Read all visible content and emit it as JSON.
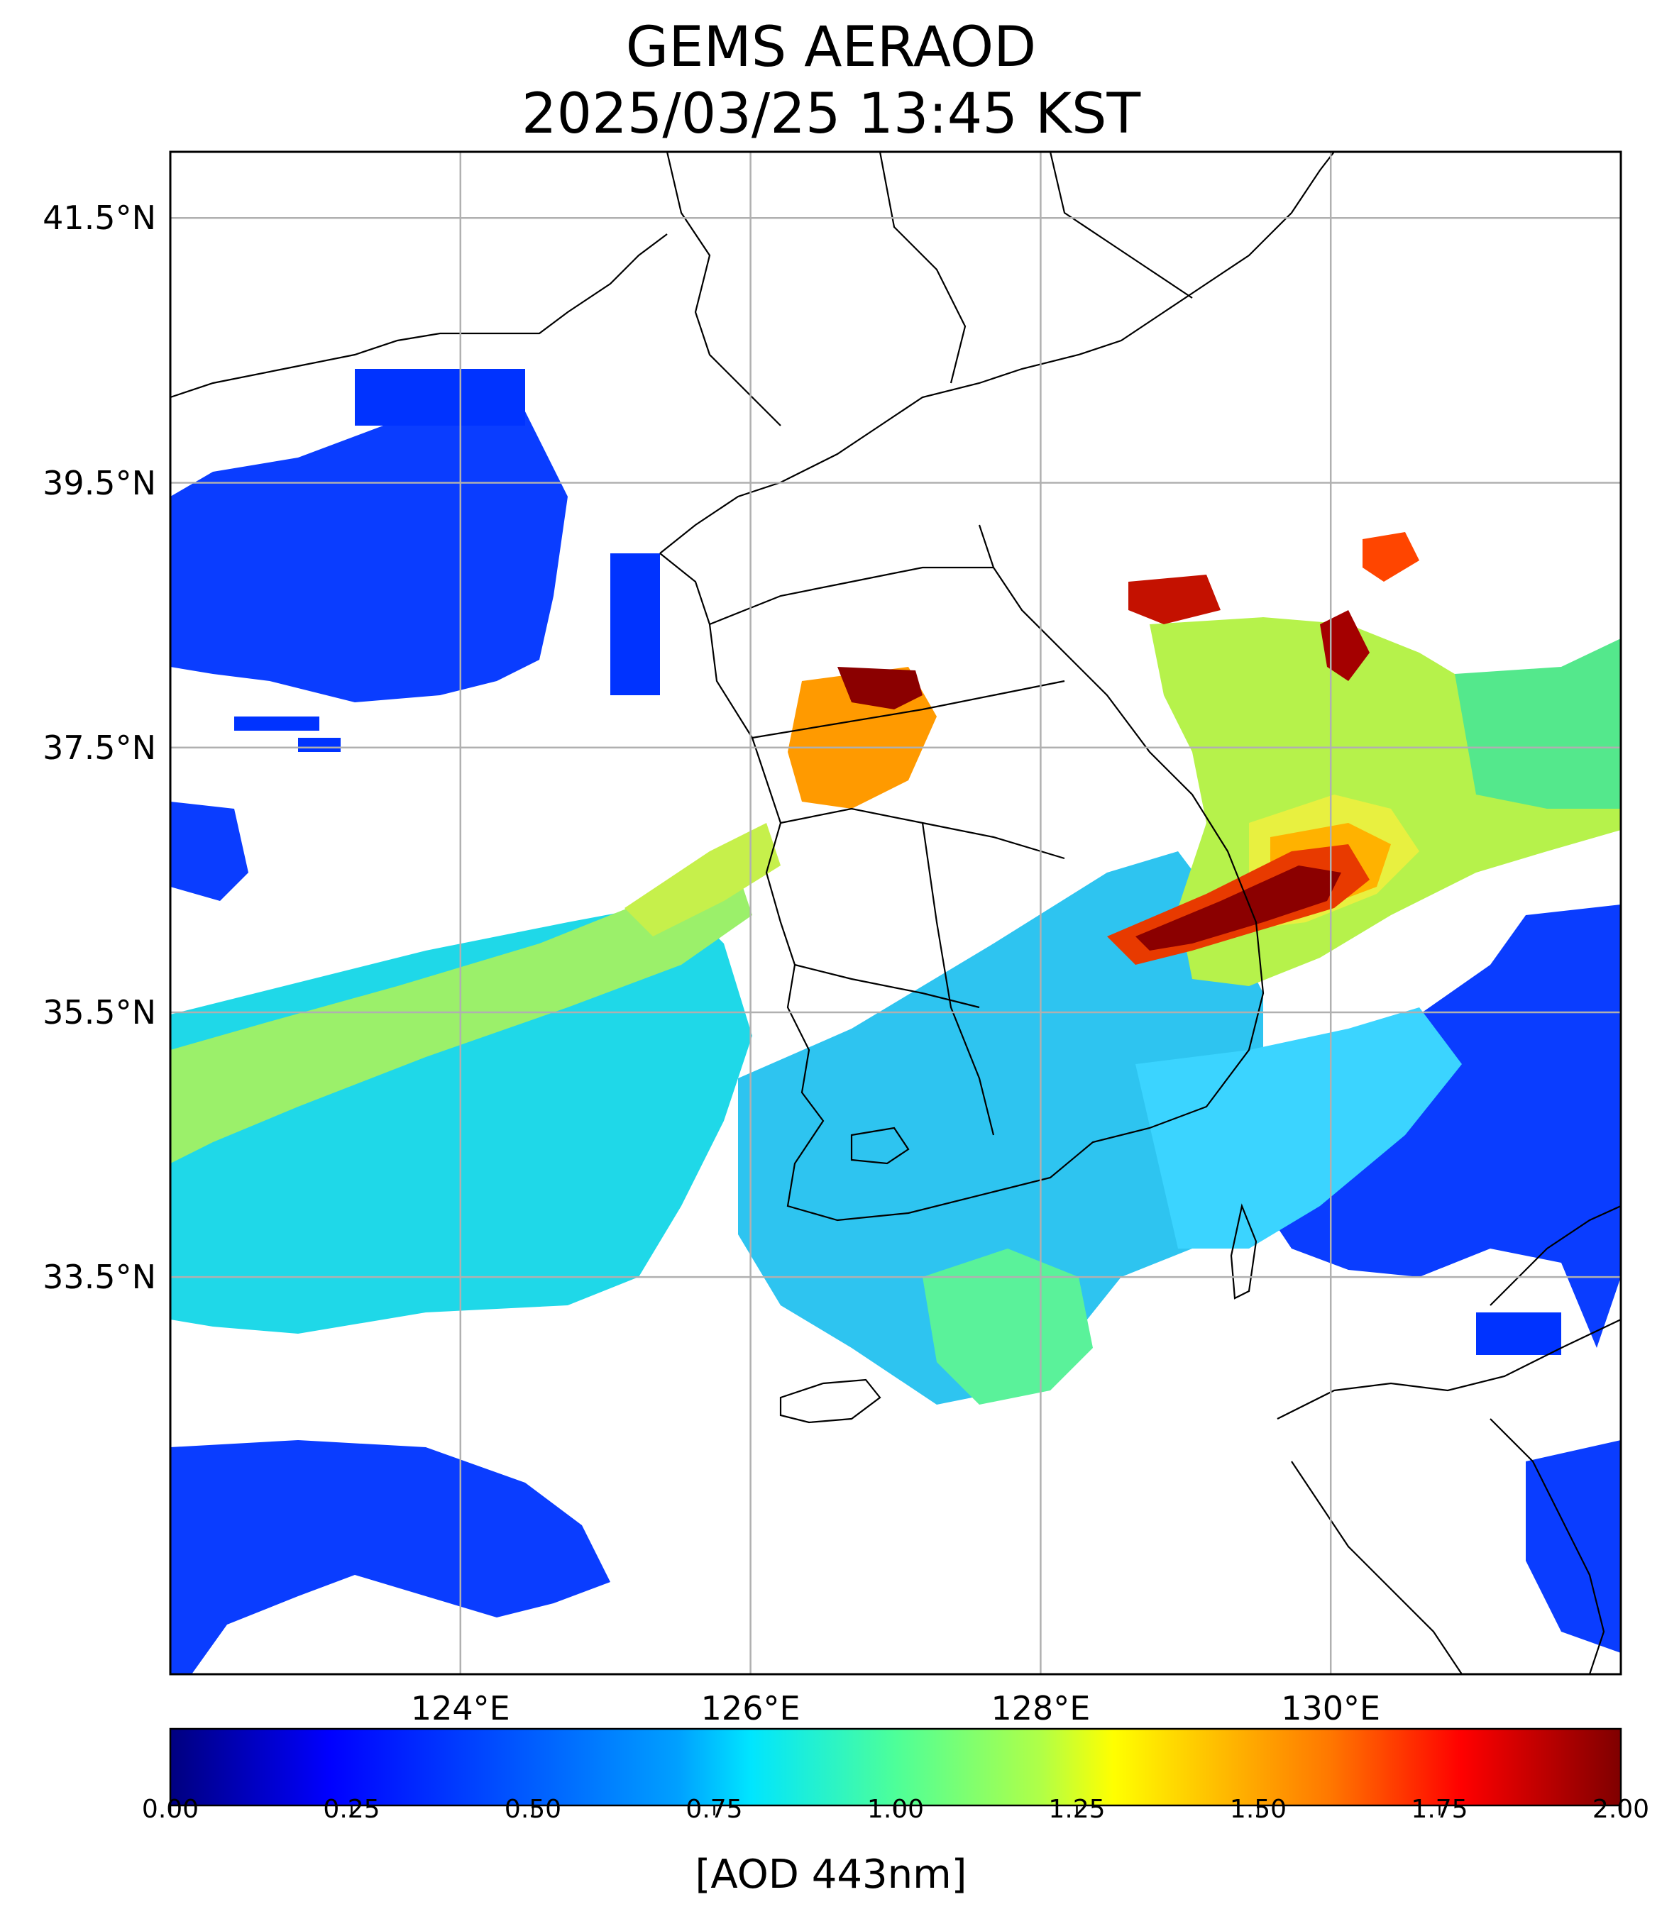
{
  "title_line1": "GEMS AERAOD",
  "title_line2": "2025/03/25 13:45 KST",
  "map": {
    "lon_range": [
      122.0,
      132.0
    ],
    "lat_range": [
      30.5,
      42.0
    ],
    "lat_ticks": [
      {
        "value": 41.5,
        "label": "41.5°N"
      },
      {
        "value": 39.5,
        "label": "39.5°N"
      },
      {
        "value": 37.5,
        "label": "37.5°N"
      },
      {
        "value": 35.5,
        "label": "35.5°N"
      },
      {
        "value": 33.5,
        "label": "33.5°N"
      }
    ],
    "lon_ticks": [
      {
        "value": 124,
        "label": "124°E"
      },
      {
        "value": 126,
        "label": "126°E"
      },
      {
        "value": 128,
        "label": "128°E"
      },
      {
        "value": 130,
        "label": "130°E"
      }
    ],
    "gridlines": true,
    "colormap": "jet"
  },
  "colorbar": {
    "range": [
      0.0,
      2.0
    ],
    "ticks": [
      "0.00",
      "0.25",
      "0.50",
      "0.75",
      "1.00",
      "1.25",
      "1.50",
      "1.75",
      "2.00"
    ],
    "label": "[AOD 443nm]",
    "colors": [
      "#00007f",
      "#0000ff",
      "#007fff",
      "#00e5ff",
      "#29ffce",
      "#7dff7a",
      "#ceff29",
      "#ffee00",
      "#ff8000",
      "#ff1400",
      "#7f0000"
    ]
  }
}
